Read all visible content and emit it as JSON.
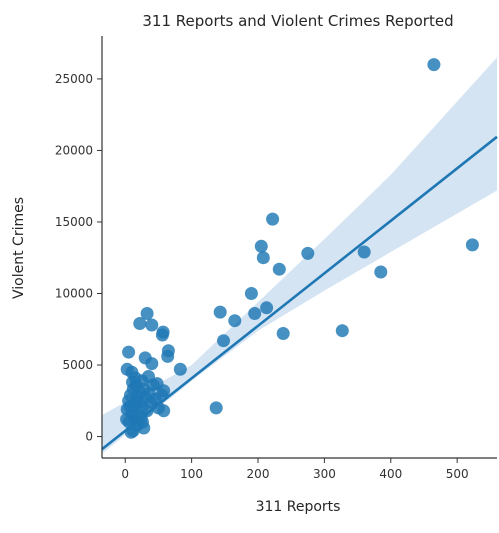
{
  "chart_data": {
    "type": "scatter",
    "title": "311 Reports and Violent Crimes Reported",
    "xlabel": "311 Reports",
    "ylabel": "Violent Crimes",
    "xlim": [
      -35,
      560
    ],
    "ylim": [
      -1500,
      28000
    ],
    "xticks": [
      0,
      100,
      200,
      300,
      400,
      500
    ],
    "yticks": [
      0,
      5000,
      10000,
      15000,
      20000,
      25000
    ],
    "grid": false,
    "colors": {
      "points": "#1f77b4",
      "line": "#1f78b4",
      "band": "#c6dbef"
    },
    "regression": {
      "slope": 36.7,
      "intercept": 400
    },
    "confidence_band": {
      "x": [
        -35,
        100,
        200,
        300,
        400,
        560
      ],
      "lower": [
        -1200,
        3900,
        7400,
        10200,
        12900,
        17200
      ],
      "upper": [
        1500,
        5000,
        9400,
        13800,
        18300,
        26500
      ]
    },
    "points": [
      {
        "x": 465,
        "y": 26000
      },
      {
        "x": 523,
        "y": 13400
      },
      {
        "x": 385,
        "y": 11500
      },
      {
        "x": 360,
        "y": 12900
      },
      {
        "x": 327,
        "y": 7400
      },
      {
        "x": 275,
        "y": 12800
      },
      {
        "x": 232,
        "y": 11700
      },
      {
        "x": 222,
        "y": 15200
      },
      {
        "x": 208,
        "y": 12500
      },
      {
        "x": 205,
        "y": 13300
      },
      {
        "x": 213,
        "y": 9000
      },
      {
        "x": 238,
        "y": 7200
      },
      {
        "x": 190,
        "y": 10000
      },
      {
        "x": 195,
        "y": 8600
      },
      {
        "x": 165,
        "y": 8100
      },
      {
        "x": 143,
        "y": 8700
      },
      {
        "x": 148,
        "y": 6700
      },
      {
        "x": 137,
        "y": 2000
      },
      {
        "x": 83,
        "y": 4700
      },
      {
        "x": 65,
        "y": 6000
      },
      {
        "x": 64,
        "y": 5600
      },
      {
        "x": 57,
        "y": 7300
      },
      {
        "x": 56,
        "y": 7100
      },
      {
        "x": 40,
        "y": 7800
      },
      {
        "x": 33,
        "y": 8600
      },
      {
        "x": 22,
        "y": 7900
      },
      {
        "x": 5,
        "y": 5900
      },
      {
        "x": 30,
        "y": 5500
      },
      {
        "x": 40,
        "y": 5100
      },
      {
        "x": 3,
        "y": 4700
      },
      {
        "x": 10,
        "y": 4500
      },
      {
        "x": 15,
        "y": 4100
      },
      {
        "x": 25,
        "y": 3900
      },
      {
        "x": 35,
        "y": 4200
      },
      {
        "x": 42,
        "y": 3600
      },
      {
        "x": 48,
        "y": 3700
      },
      {
        "x": 58,
        "y": 3200
      },
      {
        "x": 55,
        "y": 2900
      },
      {
        "x": 45,
        "y": 2600
      },
      {
        "x": 38,
        "y": 2400
      },
      {
        "x": 30,
        "y": 2700
      },
      {
        "x": 22,
        "y": 3100
      },
      {
        "x": 18,
        "y": 2800
      },
      {
        "x": 12,
        "y": 3300
      },
      {
        "x": 8,
        "y": 2900
      },
      {
        "x": 5,
        "y": 2500
      },
      {
        "x": 14,
        "y": 2200
      },
      {
        "x": 25,
        "y": 2000
      },
      {
        "x": 33,
        "y": 1800
      },
      {
        "x": 50,
        "y": 2000
      },
      {
        "x": 58,
        "y": 1800
      },
      {
        "x": 20,
        "y": 1500
      },
      {
        "x": 10,
        "y": 1600
      },
      {
        "x": 3,
        "y": 1900
      },
      {
        "x": 15,
        "y": 1200
      },
      {
        "x": 6,
        "y": 1000
      },
      {
        "x": 26,
        "y": 1000
      },
      {
        "x": 28,
        "y": 600
      },
      {
        "x": 12,
        "y": 400
      },
      {
        "x": 9,
        "y": 300
      },
      {
        "x": 18,
        "y": 800
      },
      {
        "x": 2,
        "y": 1200
      },
      {
        "x": 7,
        "y": 2100
      },
      {
        "x": 20,
        "y": 2400
      },
      {
        "x": 16,
        "y": 3600
      },
      {
        "x": 11,
        "y": 3800
      },
      {
        "x": 28,
        "y": 3300
      },
      {
        "x": 36,
        "y": 3000
      },
      {
        "x": 24,
        "y": 1300
      }
    ]
  }
}
